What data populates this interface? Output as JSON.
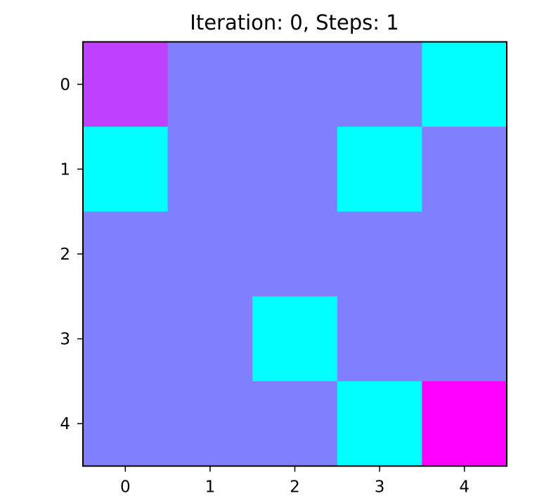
{
  "chart_data": {
    "type": "heatmap",
    "title": "Iteration: 0, Steps: 1",
    "xlabel": "",
    "ylabel": "",
    "x_categories": [
      "0",
      "1",
      "2",
      "3",
      "4"
    ],
    "y_categories": [
      "0",
      "1",
      "2",
      "3",
      "4"
    ],
    "grid": false,
    "legend": "none",
    "palette": {
      "empty": "#8080ff",
      "obstacle": "#00ffff",
      "agent": "#bf40ff",
      "goal": "#ff00ff"
    },
    "cells": [
      [
        "agent",
        "empty",
        "empty",
        "empty",
        "obstacle"
      ],
      [
        "obstacle",
        "empty",
        "empty",
        "obstacle",
        "empty"
      ],
      [
        "empty",
        "empty",
        "empty",
        "empty",
        "empty"
      ],
      [
        "empty",
        "empty",
        "obstacle",
        "empty",
        "empty"
      ],
      [
        "empty",
        "empty",
        "empty",
        "obstacle",
        "goal"
      ]
    ]
  }
}
